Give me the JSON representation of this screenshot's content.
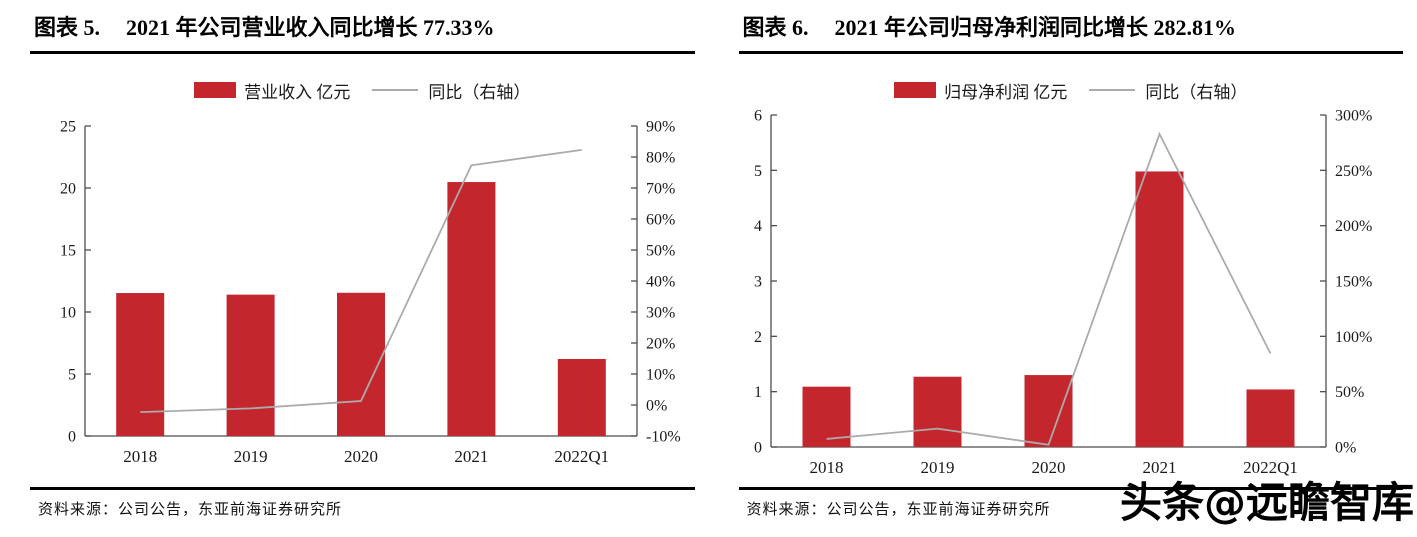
{
  "watermark": "头条@远瞻智库",
  "chart_data": [
    {
      "type": "bar",
      "title_prefix": "图表 5.",
      "title": "2021 年公司营业收入同比增长 77.33%",
      "legend": {
        "bar_label": "营业收入 亿元",
        "line_label": "同比（右轴）"
      },
      "categories": [
        "2018",
        "2019",
        "2020",
        "2021",
        "2022Q1"
      ],
      "series": [
        {
          "name": "营业收入 亿元",
          "type": "bar",
          "axis": "left",
          "values": [
            11.53,
            11.4,
            11.55,
            20.48,
            6.21
          ]
        },
        {
          "name": "同比（右轴）",
          "type": "line",
          "axis": "right",
          "values": [
            -2.3,
            -1.1,
            1.3,
            77.33,
            82.3
          ]
        }
      ],
      "left_axis": {
        "min": 0,
        "max": 25,
        "step": 5,
        "labels": [
          "0",
          "5",
          "10",
          "15",
          "20",
          "25"
        ]
      },
      "right_axis": {
        "min": -10,
        "max": 90,
        "step": 10,
        "labels": [
          "-10%",
          "0%",
          "10%",
          "20%",
          "30%",
          "40%",
          "50%",
          "60%",
          "70%",
          "80%",
          "90%"
        ]
      },
      "grid": false,
      "legend_position": "top-center",
      "source": "资料来源：公司公告，东亚前海证券研究所",
      "colors": {
        "bar": "#C4262E",
        "line": "#ABABAB",
        "axis": "#4d4d4d"
      }
    },
    {
      "type": "bar",
      "title_prefix": "图表 6.",
      "title": "2021 年公司归母净利润同比增长 282.81%",
      "legend": {
        "bar_label": "归母净利润 亿元",
        "line_label": "同比（右轴）"
      },
      "categories": [
        "2018",
        "2019",
        "2020",
        "2021",
        "2022Q1"
      ],
      "series": [
        {
          "name": "归母净利润 亿元",
          "type": "bar",
          "axis": "left",
          "values": [
            1.09,
            1.27,
            1.3,
            4.98,
            1.04
          ]
        },
        {
          "name": "同比（右轴）",
          "type": "line",
          "axis": "right",
          "values": [
            7.3,
            16.6,
            2.0,
            282.81,
            84.5
          ]
        }
      ],
      "left_axis": {
        "min": 0,
        "max": 6,
        "step": 1,
        "labels": [
          "0",
          "1",
          "2",
          "3",
          "4",
          "5",
          "6"
        ]
      },
      "right_axis": {
        "min": 0,
        "max": 300,
        "step": 50,
        "labels": [
          "0%",
          "50%",
          "100%",
          "150%",
          "200%",
          "250%",
          "300%"
        ]
      },
      "grid": false,
      "legend_position": "top-center",
      "source": "资料来源：公司公告，东亚前海证券研究所",
      "colors": {
        "bar": "#C4262E",
        "line": "#ABABAB",
        "axis": "#4d4d4d"
      }
    }
  ]
}
